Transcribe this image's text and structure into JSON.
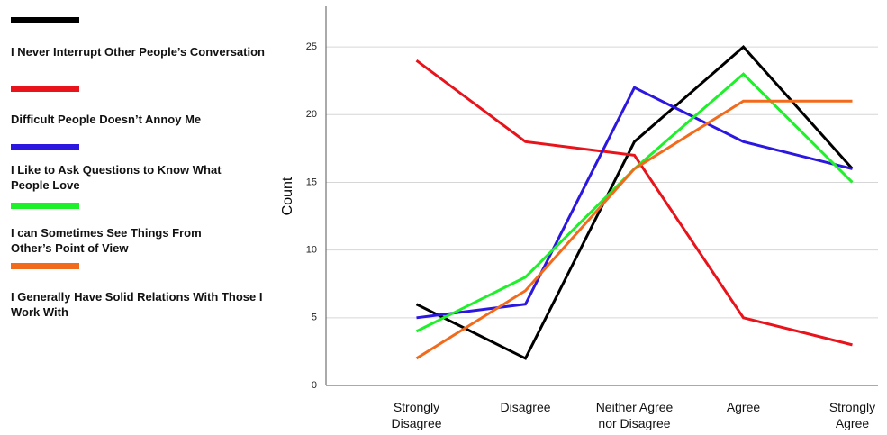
{
  "chart_data": {
    "type": "line",
    "y_label": "Count",
    "categories": [
      "Strongly Disagree",
      "Disagree",
      "Neither Agree nor Disagree",
      "Agree",
      "Strongly Agree"
    ],
    "series": [
      {
        "name": "I Never Interrupt Other People’s Conversation",
        "color": "#000000",
        "values": [
          6,
          2,
          18,
          25,
          16
        ]
      },
      {
        "name": "Difficult People Doesn’t Annoy Me",
        "color": "#e8131b",
        "values": [
          24,
          18,
          17,
          5,
          3
        ]
      },
      {
        "name": "I Like to Ask Questions to Know What People Love",
        "color": "#2b17e0",
        "values": [
          5,
          6,
          22,
          18,
          16
        ]
      },
      {
        "name": "I can Sometimes See Things From Other’s Point of View",
        "color": "#1ef02a",
        "values": [
          4,
          8,
          16,
          23,
          15
        ]
      },
      {
        "name": "I Generally Have Solid Relations With Those I Work With",
        "color": "#f26b1d",
        "values": [
          2,
          7,
          16,
          21,
          21
        ]
      }
    ],
    "ylim": [
      0,
      28
    ],
    "yticks": [
      0,
      5,
      10,
      15,
      20,
      25
    ],
    "grid": true
  }
}
